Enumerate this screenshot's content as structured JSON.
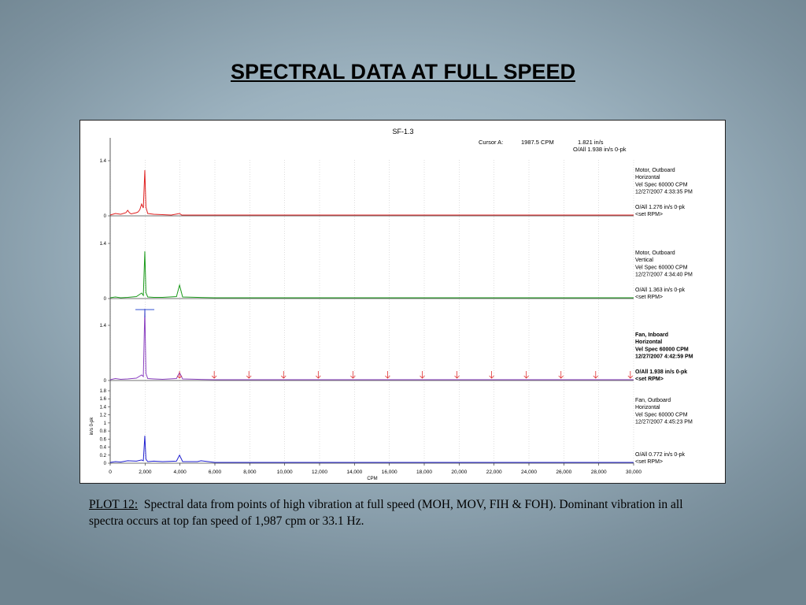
{
  "slide": {
    "title": "SPECTRAL DATA AT FULL SPEED",
    "caption_label": "PLOT 12:",
    "caption_text": "Spectral data from points of high vibration at full speed (MOH, MOV, FIH & FOH).  Dominant vibration in all spectra occurs at top fan speed of 1,987 cpm or 33.1 Hz."
  },
  "chart_data": {
    "type": "line",
    "title": "SF-1.3",
    "cursor": {
      "label": "Cursor A:",
      "cpm": "1987.5 CPM",
      "value": "1.821 in/s",
      "overall": "O/All 1.938 in/s 0-pk"
    },
    "xlabel": "CPM",
    "xlim": [
      0,
      30000
    ],
    "x_ticks": [
      "0",
      "2,000",
      "4,000",
      "6,000",
      "8,000",
      "10,000",
      "12,000",
      "14,000",
      "16,000",
      "18,000",
      "20,000",
      "22,000",
      "24,000",
      "26,000",
      "28,000",
      "30,000"
    ],
    "ylabel": "in/s 0-pk",
    "harmonic_markers_cpm": [
      3975,
      5962,
      7950,
      9937,
      11925,
      13912,
      15900,
      17887,
      19875,
      21862,
      23850,
      25837,
      27825,
      29812
    ],
    "series": [
      {
        "name": "Motor, Outboard Horizontal",
        "color": "#e02020",
        "ylim": [
          0,
          1.4
        ],
        "y_ticks": [
          "1.4",
          "0"
        ],
        "labels": [
          "Motor, Outboard",
          "Horizontal",
          "Vel Spec 60000 CPM",
          "12/27/2007 4:33:35 PM",
          "O/All 1.276 in/s 0-pk",
          "<set RPM>"
        ],
        "bold": false,
        "x": [
          0,
          300,
          600,
          900,
          1000,
          1100,
          1200,
          1500,
          1600,
          1700,
          1800,
          1900,
          1987,
          2050,
          2150,
          2500,
          3000,
          3500,
          3975,
          4100,
          5000,
          6000,
          8000,
          10000,
          15000,
          20000,
          25000,
          30000
        ],
        "values": [
          0.02,
          0.06,
          0.04,
          0.08,
          0.14,
          0.08,
          0.05,
          0.08,
          0.1,
          0.16,
          0.3,
          0.2,
          1.16,
          0.22,
          0.06,
          0.04,
          0.03,
          0.02,
          0.06,
          0.02,
          0.02,
          0.02,
          0.02,
          0.02,
          0.02,
          0.02,
          0.02,
          0.02
        ]
      },
      {
        "name": "Motor, Outboard Vertical",
        "color": "#1a9a1a",
        "ylim": [
          0,
          1.4
        ],
        "y_ticks": [
          "1.4",
          "0"
        ],
        "labels": [
          "Motor, Outboard",
          "Vertical",
          "Vel Spec 60000 CPM",
          "12/27/2007 4:34:40 PM",
          "O/All 1.363 in/s 0-pk",
          "<set RPM>"
        ],
        "bold": false,
        "x": [
          0,
          300,
          600,
          1000,
          1500,
          1800,
          1900,
          1987,
          2050,
          2150,
          2500,
          3000,
          3800,
          3975,
          4150,
          5000,
          6000,
          8000,
          10000,
          15000,
          20000,
          25000,
          30000
        ],
        "values": [
          0.02,
          0.04,
          0.02,
          0.03,
          0.05,
          0.14,
          0.08,
          1.2,
          0.15,
          0.04,
          0.03,
          0.03,
          0.05,
          0.34,
          0.04,
          0.03,
          0.02,
          0.02,
          0.02,
          0.02,
          0.02,
          0.02,
          0.02
        ]
      },
      {
        "name": "Fan, Inboard Horizontal",
        "color": "#8a3fc0",
        "ylim": [
          0,
          1.4
        ],
        "y_ticks": [
          "1.4",
          "0"
        ],
        "labels": [
          "Fan, Inboard",
          "Horizontal",
          "Vel Spec 60000 CPM",
          "12/27/2007 4:42:59 PM",
          "O/All 1.938 in/s 0-pk",
          "<set RPM>"
        ],
        "bold": true,
        "x": [
          0,
          300,
          600,
          1000,
          1500,
          1800,
          1900,
          1987,
          2050,
          2150,
          2500,
          3000,
          3800,
          3975,
          4150,
          5000,
          6000,
          8000,
          10000,
          15000,
          20000,
          25000,
          30000
        ],
        "values": [
          0.02,
          0.05,
          0.03,
          0.04,
          0.06,
          0.14,
          0.1,
          1.821,
          0.18,
          0.05,
          0.04,
          0.03,
          0.05,
          0.2,
          0.04,
          0.03,
          0.02,
          0.02,
          0.02,
          0.02,
          0.02,
          0.02,
          0.02
        ]
      },
      {
        "name": "Fan, Outboard Horizontal",
        "color": "#2020d0",
        "ylim": [
          0,
          1.8
        ],
        "y_ticks": [
          "1.8",
          "1.6",
          "1.4",
          "1.2",
          "1",
          "0.8",
          "0.6",
          "0.4",
          "0.2",
          "0"
        ],
        "labels": [
          "Fan, Outboard",
          "Horizontal",
          "Vel Spec 60000 CPM",
          "12/27/2007 4:45:23 PM",
          "O/All 0.772 in/s 0-pk",
          "<set RPM>"
        ],
        "bold": false,
        "x": [
          0,
          300,
          600,
          1000,
          1500,
          1800,
          1900,
          1987,
          2050,
          2150,
          2500,
          3000,
          3800,
          3975,
          4150,
          5000,
          5200,
          6000,
          8000,
          10000,
          15000,
          20000,
          25000,
          30000
        ],
        "values": [
          0.02,
          0.04,
          0.03,
          0.06,
          0.05,
          0.08,
          0.06,
          0.68,
          0.1,
          0.04,
          0.05,
          0.04,
          0.05,
          0.2,
          0.04,
          0.04,
          0.06,
          0.02,
          0.02,
          0.02,
          0.02,
          0.02,
          0.02,
          0.02
        ]
      }
    ]
  }
}
